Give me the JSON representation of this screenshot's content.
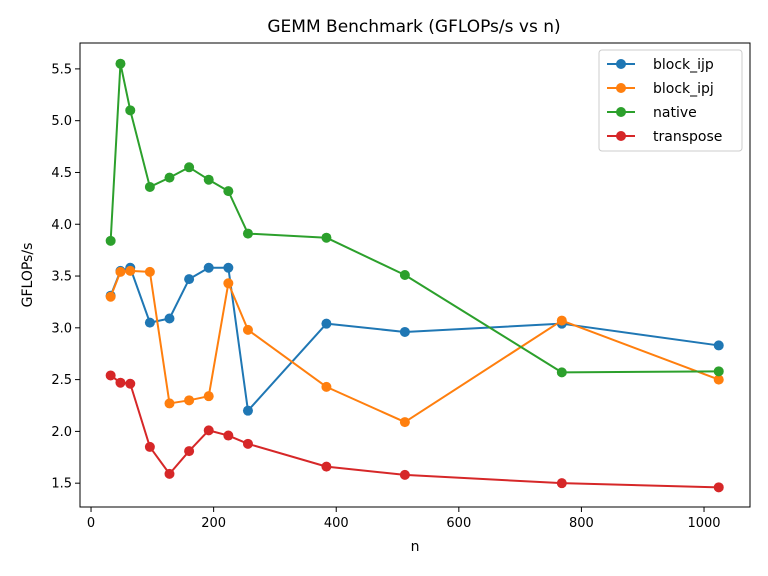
{
  "chart_data": {
    "type": "line",
    "title": "GEMM Benchmark (GFLOPs/s vs n)",
    "xlabel": "n",
    "ylabel": "GFLOPs/s",
    "xlim": [
      -18,
      1075
    ],
    "ylim": [
      1.27,
      5.75
    ],
    "xticks": [
      0,
      200,
      400,
      600,
      800,
      1000
    ],
    "xtick_labels": [
      "0",
      "200",
      "400",
      "600",
      "800",
      "1000"
    ],
    "yticks": [
      1.5,
      2.0,
      2.5,
      3.0,
      3.5,
      4.0,
      4.5,
      5.0,
      5.5
    ],
    "ytick_labels": [
      "1.5",
      "2.0",
      "2.5",
      "3.0",
      "3.5",
      "4.0",
      "4.5",
      "5.0",
      "5.5"
    ],
    "grid": false,
    "legend_position": "top-right",
    "x": [
      32,
      48,
      64,
      96,
      128,
      160,
      192,
      224,
      256,
      384,
      512,
      768,
      1024
    ],
    "series": [
      {
        "name": "block_ijp",
        "color": "#1f77b4",
        "values": [
          3.31,
          3.55,
          3.58,
          3.05,
          3.09,
          3.47,
          3.58,
          3.58,
          2.2,
          3.04,
          2.96,
          3.04,
          2.83
        ]
      },
      {
        "name": "block_ipj",
        "color": "#ff7f0e",
        "values": [
          3.3,
          3.54,
          3.55,
          3.54,
          2.27,
          2.3,
          2.34,
          3.43,
          2.98,
          2.43,
          2.09,
          3.07,
          2.5
        ]
      },
      {
        "name": "native",
        "color": "#2ca02c",
        "values": [
          3.84,
          5.55,
          5.1,
          4.36,
          4.45,
          4.55,
          4.43,
          4.32,
          3.91,
          3.87,
          3.51,
          2.57,
          2.58
        ]
      },
      {
        "name": "transpose",
        "color": "#d62728",
        "values": [
          2.54,
          2.47,
          2.46,
          1.85,
          1.59,
          1.81,
          2.01,
          1.96,
          1.88,
          1.66,
          1.58,
          1.5,
          1.46
        ]
      }
    ]
  }
}
